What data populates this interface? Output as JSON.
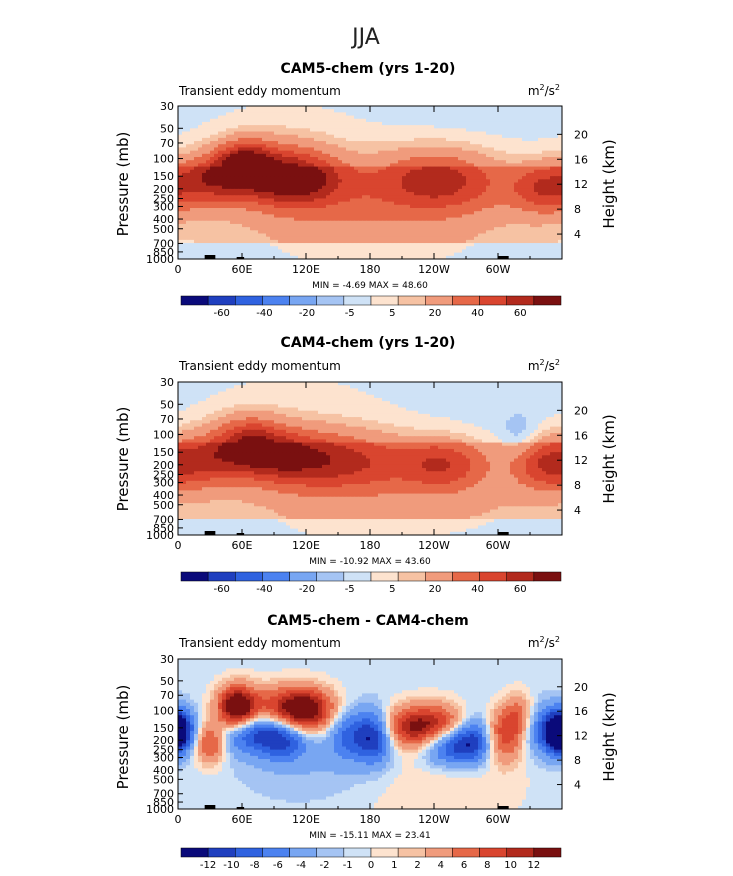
{
  "figure_title": "JJA",
  "palettes": {
    "absolute": [
      "#0a0a7a",
      "#1f3fbf",
      "#2f62e0",
      "#4c82f0",
      "#78a6f2",
      "#a5c4f3",
      "#cfe2f6",
      "#fde3cf",
      "#f6c2a3",
      "#f09b7c",
      "#e66848",
      "#d9452f",
      "#b22a1d",
      "#7a1010"
    ],
    "difference": [
      "#0a0a7a",
      "#1f3fbf",
      "#2f62e0",
      "#4c82f0",
      "#78a6f2",
      "#a5c4f3",
      "#cfe2f6",
      "#fde3cf",
      "#f6c2a3",
      "#f09b7c",
      "#e66848",
      "#d9452f",
      "#b22a1d",
      "#7a1010"
    ]
  },
  "chart_data": [
    {
      "type": "heatmap",
      "title": "CAM5-chem (yrs 1-20)",
      "subtitle_left": "Transient eddy momentum",
      "units_base": "m",
      "units_mid": "/s",
      "units_exp": "2",
      "ylabel_left": "Pressure (mb)",
      "ylabel_right": "Height (km)",
      "pressure_ticks": [
        "30",
        "50",
        "70",
        "100",
        "150",
        "200",
        "250",
        "300",
        "400",
        "500",
        "700",
        "850",
        "1000"
      ],
      "pressure_values": [
        30,
        50,
        70,
        100,
        150,
        200,
        250,
        300,
        400,
        500,
        700,
        850,
        1000
      ],
      "height_ticks": [
        "20",
        "16",
        "12",
        "8",
        "4"
      ],
      "height_values": [
        20,
        16,
        12,
        8,
        4
      ],
      "lon_ticks": [
        "0",
        "60E",
        "120E",
        "180",
        "120W",
        "60W"
      ],
      "lon_values": [
        0,
        60,
        120,
        180,
        240,
        300
      ],
      "xlim": [
        0,
        360
      ],
      "ylim": [
        1000,
        30
      ],
      "min_label": "MIN =",
      "min_value": "-4.69",
      "max_label": "MAX =",
      "max_value": "48.60",
      "colorbar": "absolute",
      "colorbar_labels": [
        "-60",
        "-40",
        "-20",
        "-5",
        "5",
        "20",
        "40",
        "60"
      ],
      "features": [
        {
          "lon": 30,
          "p": 160,
          "value": 32,
          "w": 22,
          "h": 0.12
        },
        {
          "lon": 62,
          "p": 110,
          "value": 40,
          "w": 18,
          "h": 0.1
        },
        {
          "lon": 90,
          "p": 140,
          "value": 30,
          "w": 32,
          "h": 0.14
        },
        {
          "lon": 115,
          "p": 160,
          "value": 26,
          "w": 30,
          "h": 0.12
        },
        {
          "lon": 165,
          "p": 200,
          "value": 12,
          "w": 60,
          "h": 0.18
        },
        {
          "lon": 240,
          "p": 160,
          "value": 28,
          "w": 36,
          "h": 0.14
        },
        {
          "lon": 285,
          "p": 180,
          "value": 10,
          "w": 40,
          "h": 0.16
        },
        {
          "lon": 345,
          "p": 200,
          "value": 30,
          "w": 22,
          "h": 0.12
        },
        {
          "lon": 180,
          "p": 400,
          "value": 6,
          "w": 120,
          "h": 0.25
        },
        {
          "lon": 100,
          "p": 60,
          "value": 4,
          "w": 70,
          "h": 0.25
        },
        {
          "lon": 40,
          "p": 600,
          "value": -3,
          "w": 40,
          "h": 0.25
        },
        {
          "lon": 320,
          "p": 450,
          "value": -3,
          "w": 40,
          "h": 0.2
        }
      ]
    },
    {
      "type": "heatmap",
      "title": "CAM4-chem (yrs 1-20)",
      "subtitle_left": "Transient eddy momentum",
      "units_base": "m",
      "units_mid": "/s",
      "units_exp": "2",
      "ylabel_left": "Pressure (mb)",
      "ylabel_right": "Height (km)",
      "pressure_ticks": [
        "30",
        "50",
        "70",
        "100",
        "150",
        "200",
        "250",
        "300",
        "400",
        "500",
        "700",
        "850",
        "1000"
      ],
      "pressure_values": [
        30,
        50,
        70,
        100,
        150,
        200,
        250,
        300,
        400,
        500,
        700,
        850,
        1000
      ],
      "height_ticks": [
        "20",
        "16",
        "12",
        "8",
        "4"
      ],
      "height_values": [
        20,
        16,
        12,
        8,
        4
      ],
      "lon_ticks": [
        "0",
        "60E",
        "120E",
        "180",
        "120W",
        "60W"
      ],
      "lon_values": [
        0,
        60,
        120,
        180,
        240,
        300
      ],
      "xlim": [
        0,
        360
      ],
      "ylim": [
        1000,
        30
      ],
      "min_label": "MIN =",
      "min_value": "-10.92",
      "max_label": "MAX =",
      "max_value": "43.60",
      "colorbar": "absolute",
      "colorbar_labels": [
        "-60",
        "-40",
        "-20",
        "-5",
        "5",
        "20",
        "40",
        "60"
      ],
      "features": [
        {
          "lon": 25,
          "p": 180,
          "value": 28,
          "w": 24,
          "h": 0.13
        },
        {
          "lon": 65,
          "p": 120,
          "value": 34,
          "w": 22,
          "h": 0.12
        },
        {
          "lon": 95,
          "p": 160,
          "value": 30,
          "w": 30,
          "h": 0.13
        },
        {
          "lon": 140,
          "p": 180,
          "value": 22,
          "w": 40,
          "h": 0.14
        },
        {
          "lon": 180,
          "p": 190,
          "value": 14,
          "w": 40,
          "h": 0.14
        },
        {
          "lon": 250,
          "p": 200,
          "value": 28,
          "w": 28,
          "h": 0.12
        },
        {
          "lon": 345,
          "p": 200,
          "value": 30,
          "w": 22,
          "h": 0.12
        },
        {
          "lon": 320,
          "p": 100,
          "value": -8,
          "w": 12,
          "h": 0.1
        },
        {
          "lon": 180,
          "p": 400,
          "value": 6,
          "w": 120,
          "h": 0.25
        },
        {
          "lon": 110,
          "p": 55,
          "value": 4,
          "w": 80,
          "h": 0.25
        },
        {
          "lon": 40,
          "p": 600,
          "value": -3,
          "w": 40,
          "h": 0.25
        }
      ]
    },
    {
      "type": "heatmap",
      "title": "CAM5-chem - CAM4-chem",
      "subtitle_left": "Transient eddy momentum",
      "units_base": "m",
      "units_mid": "/s",
      "units_exp": "2",
      "ylabel_left": "Pressure (mb)",
      "ylabel_right": "Height (km)",
      "pressure_ticks": [
        "30",
        "50",
        "70",
        "100",
        "150",
        "200",
        "250",
        "300",
        "400",
        "500",
        "700",
        "850",
        "1000"
      ],
      "pressure_values": [
        30,
        50,
        70,
        100,
        150,
        200,
        250,
        300,
        400,
        500,
        700,
        850,
        1000
      ],
      "height_ticks": [
        "20",
        "16",
        "12",
        "8",
        "4"
      ],
      "height_values": [
        20,
        16,
        12,
        8,
        4
      ],
      "lon_ticks": [
        "0",
        "60E",
        "120E",
        "180",
        "120W",
        "60W"
      ],
      "lon_values": [
        0,
        60,
        120,
        180,
        240,
        300
      ],
      "xlim": [
        0,
        360
      ],
      "ylim": [
        1000,
        30
      ],
      "min_label": "MIN =",
      "min_value": "-15.11",
      "max_label": "MAX =",
      "max_value": "23.41",
      "colorbar": "difference",
      "colorbar_labels": [
        "-12",
        "-10",
        "-8",
        "-6",
        "-4",
        "-2",
        "-1",
        "0",
        "1",
        "2",
        "4",
        "6",
        "8",
        "10",
        "12"
      ],
      "features": [
        {
          "lon": 55,
          "p": 95,
          "value": 14,
          "w": 12,
          "h": 0.1
        },
        {
          "lon": 95,
          "p": 100,
          "value": 8,
          "w": 30,
          "h": 0.11
        },
        {
          "lon": 120,
          "p": 100,
          "value": 10,
          "w": 18,
          "h": 0.1
        },
        {
          "lon": 30,
          "p": 210,
          "value": 8,
          "w": 10,
          "h": 0.1
        },
        {
          "lon": 5,
          "p": 160,
          "value": -8,
          "w": 10,
          "h": 0.1
        },
        {
          "lon": 70,
          "p": 160,
          "value": -9,
          "w": 22,
          "h": 0.1
        },
        {
          "lon": 100,
          "p": 190,
          "value": -7,
          "w": 16,
          "h": 0.1
        },
        {
          "lon": 160,
          "p": 170,
          "value": -6,
          "w": 14,
          "h": 0.12
        },
        {
          "lon": 185,
          "p": 180,
          "value": -10,
          "w": 12,
          "h": 0.12
        },
        {
          "lon": 235,
          "p": 150,
          "value": 14,
          "w": 30,
          "h": 0.1
        },
        {
          "lon": 255,
          "p": 210,
          "value": -12,
          "w": 20,
          "h": 0.1
        },
        {
          "lon": 280,
          "p": 180,
          "value": -8,
          "w": 14,
          "h": 0.12
        },
        {
          "lon": 305,
          "p": 180,
          "value": 8,
          "w": 14,
          "h": 0.12
        },
        {
          "lon": 320,
          "p": 110,
          "value": 5,
          "w": 10,
          "h": 0.1
        },
        {
          "lon": 340,
          "p": 160,
          "value": -6,
          "w": 14,
          "h": 0.12
        },
        {
          "lon": 355,
          "p": 170,
          "value": -9,
          "w": 8,
          "h": 0.1
        },
        {
          "lon": 150,
          "p": 350,
          "value": -2,
          "w": 60,
          "h": 0.2
        },
        {
          "lon": 230,
          "p": 500,
          "value": 2,
          "w": 60,
          "h": 0.25
        }
      ]
    }
  ]
}
